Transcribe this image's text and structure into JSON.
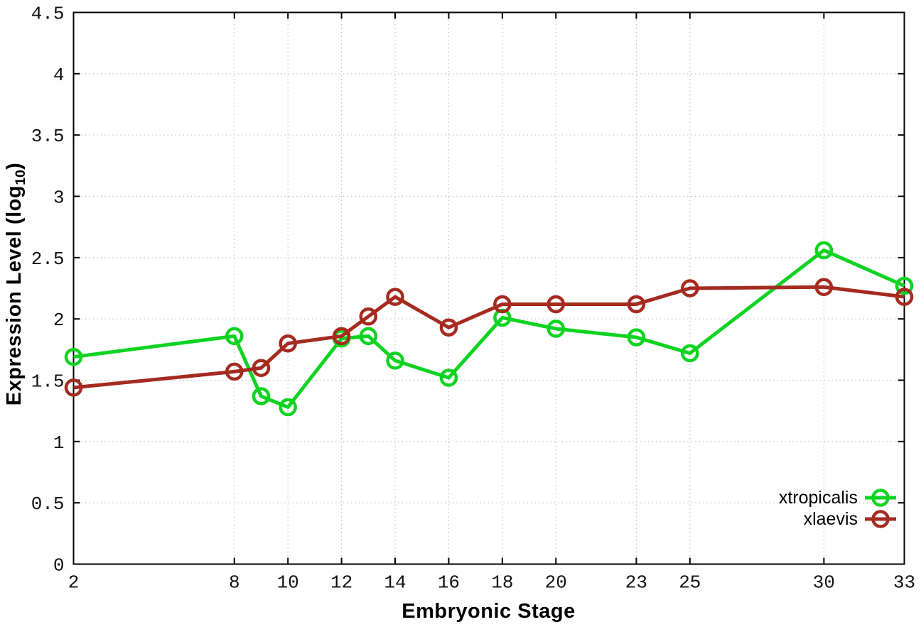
{
  "figure": {
    "background": "#ffffff",
    "axis_color": "#000000",
    "grid_color": "#b8b8b8",
    "tick_label_color": "#111111"
  },
  "chart_data": {
    "type": "line",
    "title": "",
    "xlabel": "Embryonic Stage",
    "ylabel": "Expression Level (log10)",
    "ylabel_parts": {
      "pre": "Expression Level (log",
      "sub": "10",
      "post": ")"
    },
    "xlim": [
      2,
      33
    ],
    "ylim": [
      0,
      4.5
    ],
    "xticks": [
      2,
      8,
      10,
      12,
      14,
      16,
      18,
      20,
      23,
      25,
      30,
      33
    ],
    "yticks": [
      0,
      0.5,
      1,
      1.5,
      2,
      2.5,
      3,
      3.5,
      4,
      4.5
    ],
    "ytick_labels": [
      "0",
      "0.5",
      "1",
      "1.5",
      "2",
      "2.5",
      "3",
      "3.5",
      "4",
      "4.5"
    ],
    "grid": true,
    "legend_position": "bottom-right",
    "marker": "open-circle",
    "x": [
      2,
      8,
      9,
      10,
      12,
      13,
      14,
      16,
      18,
      20,
      23,
      25,
      30,
      33
    ],
    "series": [
      {
        "name": "xtropicalis",
        "color": "#0fd321",
        "values": [
          1.69,
          1.86,
          1.37,
          1.28,
          1.84,
          1.86,
          1.66,
          1.52,
          2.01,
          1.92,
          1.85,
          1.72,
          2.56,
          2.27
        ]
      },
      {
        "name": "xlaevis",
        "color": "#a52a20",
        "values": [
          1.44,
          1.57,
          1.6,
          1.8,
          1.86,
          2.02,
          2.18,
          1.93,
          2.12,
          2.12,
          2.12,
          2.25,
          2.26,
          2.18
        ]
      }
    ]
  }
}
